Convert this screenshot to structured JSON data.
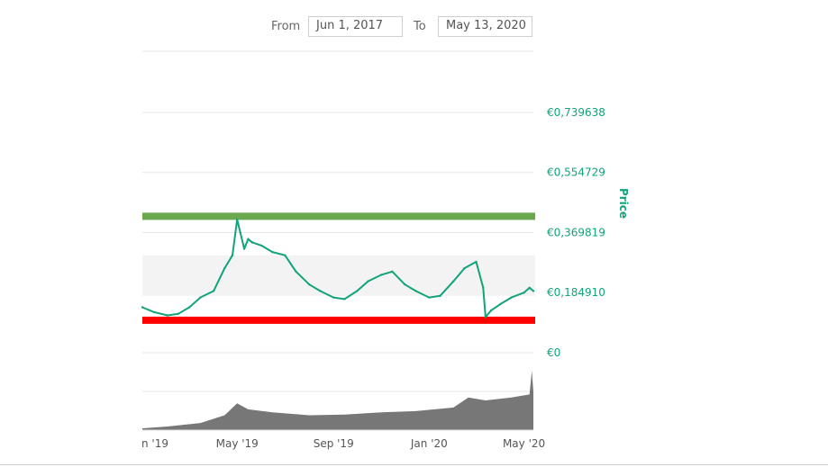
{
  "range_selector": {
    "from_label": "From",
    "from_value": "Jun 1, 2017",
    "to_label": "To",
    "to_value": "May 13, 2020"
  },
  "chart_data": {
    "type": "line",
    "ylabel": "Price",
    "ylim": [
      0,
      0.739638
    ],
    "y_ticks": [
      {
        "value": 0,
        "label": "€0"
      },
      {
        "value": 0.18491,
        "label": "€0,184910"
      },
      {
        "value": 0.369819,
        "label": "€0,369819"
      },
      {
        "value": 0.554729,
        "label": "€0,554729"
      },
      {
        "value": 0.739638,
        "label": "€0,739638"
      }
    ],
    "x_ticks": [
      {
        "date": "2019-01-01",
        "label": "n '19"
      },
      {
        "date": "2019-05-01",
        "label": "May '19"
      },
      {
        "date": "2019-09-01",
        "label": "Sep '19"
      },
      {
        "date": "2020-01-01",
        "label": "Jan '20"
      },
      {
        "date": "2020-05-01",
        "label": "May '20"
      }
    ],
    "x_domain": [
      "2018-12-31",
      "2020-05-13"
    ],
    "reference_lines": [
      {
        "value": 0.42,
        "color": "#6aa84f"
      },
      {
        "value": 0.1,
        "color": "#ff0000"
      }
    ],
    "highlight_band": [
      0.175,
      0.3
    ],
    "series": [
      {
        "color": "#12a37a",
        "dates": [
          "2018-12-31",
          "2019-01-15",
          "2019-02-01",
          "2019-02-15",
          "2019-03-01",
          "2019-03-15",
          "2019-04-01",
          "2019-04-15",
          "2019-04-25",
          "2019-05-01",
          "2019-05-05",
          "2019-05-10",
          "2019-05-15",
          "2019-05-20",
          "2019-06-01",
          "2019-06-15",
          "2019-07-01",
          "2019-07-15",
          "2019-08-01",
          "2019-08-15",
          "2019-09-01",
          "2019-09-15",
          "2019-10-01",
          "2019-10-15",
          "2019-11-01",
          "2019-11-15",
          "2019-12-01",
          "2019-12-15",
          "2020-01-01",
          "2020-01-15",
          "2020-02-01",
          "2020-02-15",
          "2020-03-01",
          "2020-03-10",
          "2020-03-13",
          "2020-03-20",
          "2020-04-01",
          "2020-04-15",
          "2020-05-01",
          "2020-05-08",
          "2020-05-13"
        ],
        "values": [
          0.14,
          0.125,
          0.115,
          0.12,
          0.14,
          0.17,
          0.19,
          0.26,
          0.3,
          0.41,
          0.37,
          0.32,
          0.35,
          0.34,
          0.33,
          0.31,
          0.3,
          0.25,
          0.21,
          0.19,
          0.17,
          0.165,
          0.19,
          0.22,
          0.24,
          0.25,
          0.21,
          0.19,
          0.17,
          0.175,
          0.22,
          0.26,
          0.28,
          0.2,
          0.11,
          0.13,
          0.15,
          0.17,
          0.185,
          0.2,
          0.19
        ]
      }
    ],
    "volume": {
      "color": "#777777",
      "dates": [
        "2018-12-31",
        "2019-02-01",
        "2019-03-15",
        "2019-04-15",
        "2019-05-01",
        "2019-05-15",
        "2019-06-15",
        "2019-08-01",
        "2019-09-15",
        "2019-11-01",
        "2019-12-15",
        "2020-02-01",
        "2020-02-20",
        "2020-03-13",
        "2020-04-15",
        "2020-05-08",
        "2020-05-11",
        "2020-05-13"
      ],
      "values": [
        0.03,
        0.06,
        0.12,
        0.25,
        0.45,
        0.35,
        0.3,
        0.25,
        0.26,
        0.3,
        0.32,
        0.38,
        0.55,
        0.5,
        0.55,
        0.6,
        1.0,
        0.65
      ]
    }
  }
}
